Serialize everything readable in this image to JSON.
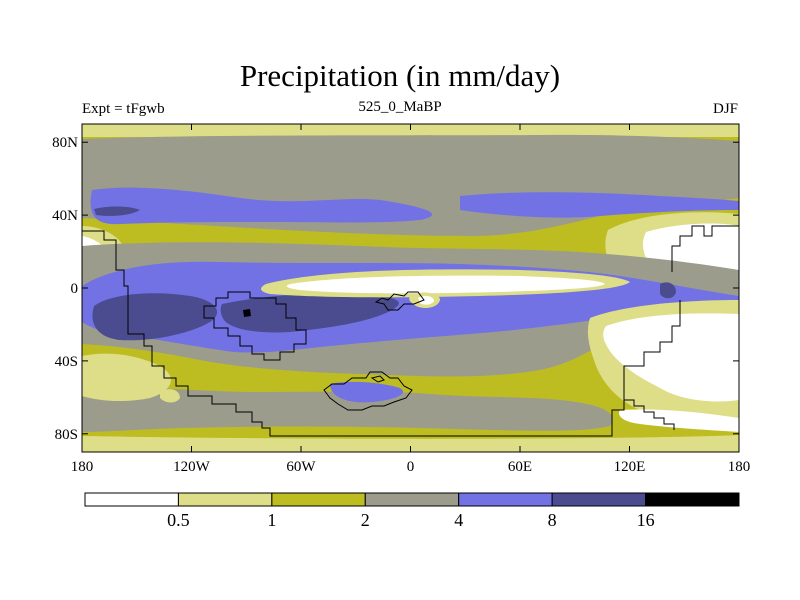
{
  "title": "Precipitation (in mm/day)",
  "subtitle_left": "Expt = tFgwb",
  "subtitle_center": "525_0_MaBP",
  "subtitle_right": "DJF",
  "map": {
    "projection": "cylindrical equidistant",
    "lon_range": [
      -180,
      180
    ],
    "lat_range": [
      -90,
      90
    ],
    "y_ticks": [
      {
        "value": 80,
        "label": "80N"
      },
      {
        "value": 40,
        "label": "40N"
      },
      {
        "value": 0,
        "label": "0"
      },
      {
        "value": -40,
        "label": "40S"
      },
      {
        "value": -80,
        "label": "80S"
      }
    ],
    "x_ticks": [
      {
        "value": -180,
        "label": "180"
      },
      {
        "value": -120,
        "label": "120W"
      },
      {
        "value": -60,
        "label": "60W"
      },
      {
        "value": 0,
        "label": "0"
      },
      {
        "value": 60,
        "label": "60E"
      },
      {
        "value": 120,
        "label": "120E"
      },
      {
        "value": 180,
        "label": "180"
      }
    ]
  },
  "colorbar": {
    "levels": [
      "0.5",
      "1",
      "2",
      "4",
      "8",
      "16"
    ],
    "colors": [
      "#ffffff",
      "#dede88",
      "#bdbd21",
      "#9c9c8c",
      "#7272e4",
      "#4b4b90",
      "#000000"
    ]
  }
}
